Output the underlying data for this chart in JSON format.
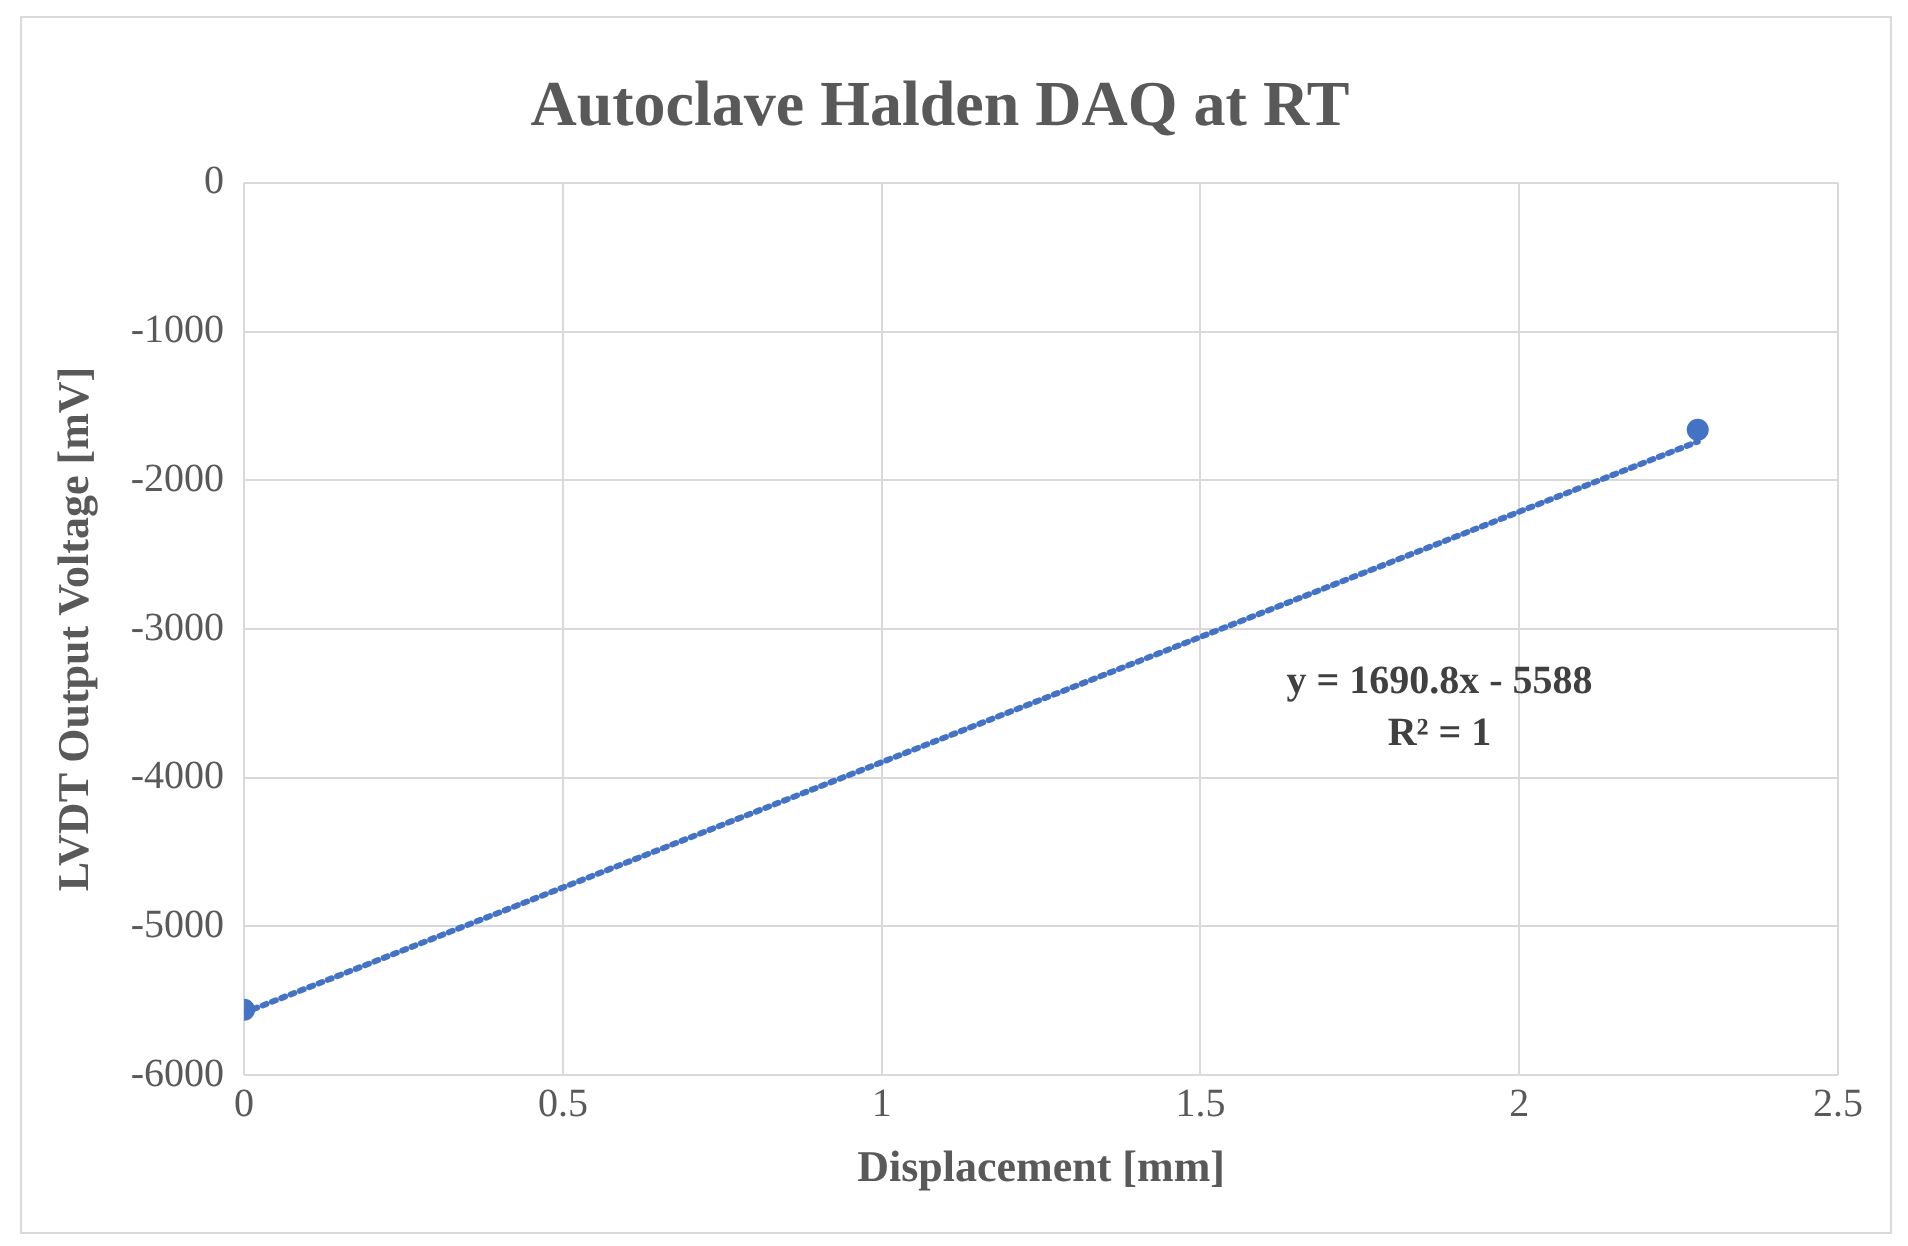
{
  "chart_data": {
    "type": "scatter",
    "title": "Autoclave Halden DAQ at RT",
    "xlabel": "Displacement [mm]",
    "ylabel": "LVDT Output Voltage [mV]",
    "x": [
      0,
      2.28
    ],
    "series": [
      {
        "color": "#4472c4",
        "values": [
          -5560,
          -1660
        ],
        "marker": "circle"
      },
      {
        "type": "line",
        "color": "#4472c4",
        "values": [
          -5580,
          -1740
        ],
        "line_style": "dotted",
        "marker": "none"
      }
    ],
    "xlim": [
      0,
      2.5
    ],
    "xticks": [
      0,
      0.5,
      1,
      1.5,
      2,
      2.5
    ],
    "ylim": [
      -6000,
      0
    ],
    "yticks": [
      -6000,
      -5000,
      -4000,
      -3000,
      -2000,
      -1000,
      0
    ],
    "grid": true,
    "legend": false,
    "annotations": [
      "y = 1690.8x - 5588",
      "R² = 1"
    ]
  }
}
